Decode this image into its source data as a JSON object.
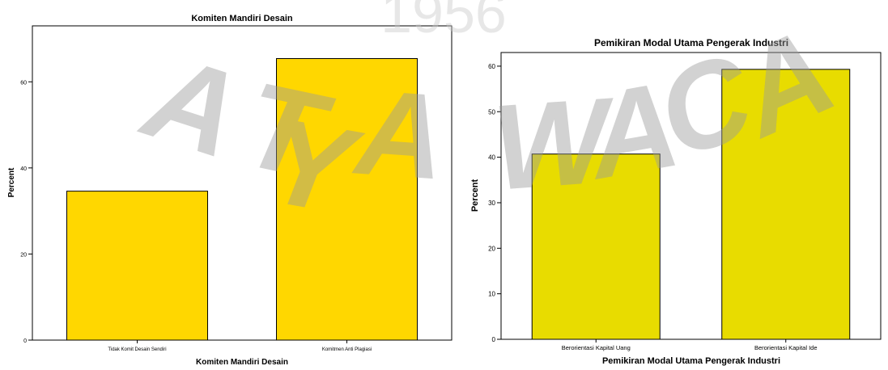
{
  "watermark": {
    "texts": [
      "1956",
      "ATMA JAYA WACANA"
    ],
    "color": "#9a9a9a"
  },
  "chart_data": [
    {
      "type": "bar",
      "title": "Komiten Mandiri Desain",
      "xlabel": "Komiten Mandiri Desain",
      "ylabel": "Percent",
      "categories": [
        "Tidak Komit Desain Sendiri",
        "Komitmen Anti Plagiasi"
      ],
      "values": [
        34.6,
        65.4
      ],
      "ylim": [
        0,
        73
      ],
      "yticks": [
        0,
        20,
        40,
        60
      ],
      "bar_color": "#ffd700",
      "grid": false,
      "legend": "none"
    },
    {
      "type": "bar",
      "title": "Pemikiran Modal Utama Pengerak Industri",
      "xlabel": "Pemikiran Modal Utama Pengerak Industri",
      "ylabel": "Percent",
      "categories": [
        "Berorientasi Kapital Uang",
        "Berorientasi Kapital Ide"
      ],
      "values": [
        40.7,
        59.3
      ],
      "ylim": [
        0,
        63
      ],
      "yticks": [
        0,
        10,
        20,
        30,
        40,
        50,
        60
      ],
      "bar_color": "#e8dc00",
      "grid": false,
      "legend": "none"
    }
  ]
}
